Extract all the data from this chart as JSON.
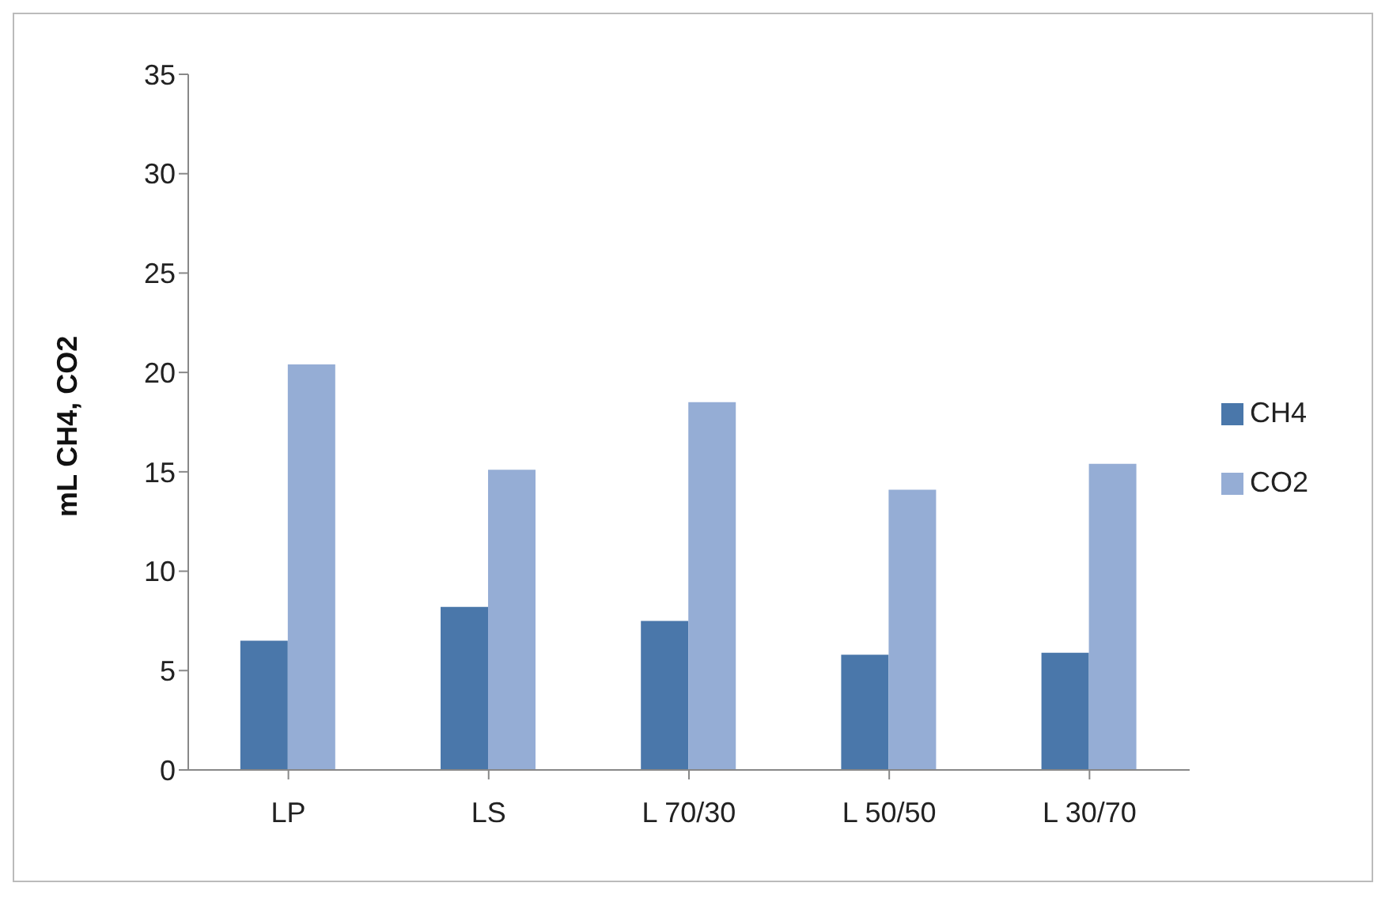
{
  "chart_data": {
    "type": "bar",
    "ylabel": "mL CH4, CO2",
    "categories": [
      "LP",
      "LS",
      "L 70/30",
      "L 50/50",
      "L 30/70"
    ],
    "series": [
      {
        "name": "CH4",
        "color": "#4a77aa",
        "values": [
          6.5,
          8.2,
          7.5,
          5.8,
          5.9
        ]
      },
      {
        "name": "CO2",
        "color": "#95add5",
        "values": [
          20.4,
          15.1,
          18.5,
          14.1,
          15.4
        ]
      }
    ],
    "ylim": [
      0,
      35
    ],
    "yticks": [
      0,
      5,
      10,
      15,
      20,
      25,
      30,
      35
    ],
    "grid": false,
    "legend": "right"
  }
}
